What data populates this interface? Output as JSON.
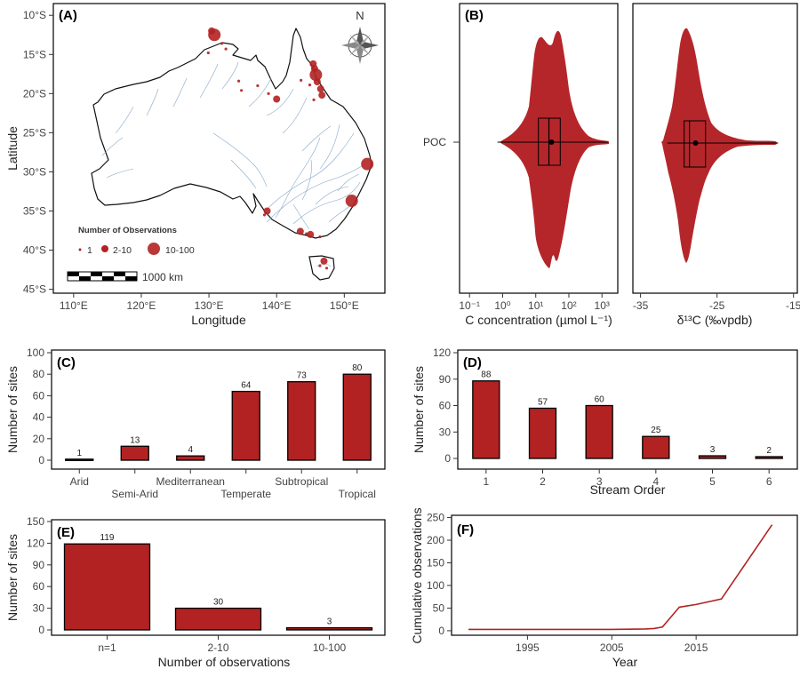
{
  "colors": {
    "accent": "#b22222",
    "violin": "#b5262a",
    "land": "#ffffff",
    "river": "#7a9ec2"
  },
  "chart_data": [
    {
      "type": "scatter",
      "panel": "(A)",
      "xlabel": "Longitude",
      "ylabel": "Latitude",
      "xticks": [
        "110°E",
        "120°E",
        "130°E",
        "140°E",
        "150°E"
      ],
      "yticks": [
        "10°S",
        "15°S",
        "20°S",
        "25°S",
        "30°S",
        "35°S",
        "40°S",
        "45°S"
      ],
      "xlim": [
        107,
        156
      ],
      "ylim": [
        -45.5,
        -8.5
      ],
      "north_label": "N",
      "legend": {
        "title": "Number of Observations",
        "items": [
          "1",
          "2-10",
          "10-100"
        ]
      },
      "scalebar_label": "1000 km",
      "points": [
        {
          "lon": 130.8,
          "lat": -12.5,
          "size": "10-100"
        },
        {
          "lon": 130.4,
          "lat": -12.0,
          "size": "2-10"
        },
        {
          "lon": 131.9,
          "lat": -13.6,
          "size": "1"
        },
        {
          "lon": 132.5,
          "lat": -14.3,
          "size": "1"
        },
        {
          "lon": 129.9,
          "lat": -14.8,
          "size": "1"
        },
        {
          "lon": 134.4,
          "lat": -18.4,
          "size": "1"
        },
        {
          "lon": 134.8,
          "lat": -19.6,
          "size": "1"
        },
        {
          "lon": 137.2,
          "lat": -19.0,
          "size": "1"
        },
        {
          "lon": 138.8,
          "lat": -20.0,
          "size": "1"
        },
        {
          "lon": 140.0,
          "lat": -20.7,
          "size": "2-10"
        },
        {
          "lon": 143.6,
          "lat": -18.3,
          "size": "1"
        },
        {
          "lon": 144.9,
          "lat": -18.9,
          "size": "1"
        },
        {
          "lon": 145.4,
          "lat": -16.2,
          "size": "2-10"
        },
        {
          "lon": 145.6,
          "lat": -16.8,
          "size": "2-10"
        },
        {
          "lon": 145.8,
          "lat": -17.6,
          "size": "10-100"
        },
        {
          "lon": 146.0,
          "lat": -18.5,
          "size": "2-10"
        },
        {
          "lon": 146.5,
          "lat": -19.4,
          "size": "2-10"
        },
        {
          "lon": 146.7,
          "lat": -20.2,
          "size": "2-10"
        },
        {
          "lon": 145.5,
          "lat": -20.8,
          "size": "1"
        },
        {
          "lon": 153.4,
          "lat": -29.0,
          "size": "10-100"
        },
        {
          "lon": 151.1,
          "lat": -33.7,
          "size": "10-100"
        },
        {
          "lon": 138.6,
          "lat": -35.0,
          "size": "2-10"
        },
        {
          "lon": 138.2,
          "lat": -35.5,
          "size": "1"
        },
        {
          "lon": 143.5,
          "lat": -37.6,
          "size": "2-10"
        },
        {
          "lon": 144.4,
          "lat": -37.9,
          "size": "1"
        },
        {
          "lon": 145.0,
          "lat": -38.0,
          "size": "2-10"
        },
        {
          "lon": 146.4,
          "lat": -38.3,
          "size": "1"
        },
        {
          "lon": 147.0,
          "lat": -41.4,
          "size": "2-10"
        },
        {
          "lon": 147.4,
          "lat": -42.3,
          "size": "1"
        },
        {
          "lon": 146.4,
          "lat": -42.0,
          "size": "1"
        }
      ]
    },
    {
      "type": "violin",
      "panel": "(B)",
      "category": "POC",
      "xlabel": "C concentration (µmol L⁻¹)",
      "xscale": "log",
      "xlim": [
        0.05,
        3000
      ],
      "xticks": [
        "10⁻¹",
        "10⁰",
        "10¹",
        "10²",
        "10³"
      ],
      "summary": {
        "min": 0.7,
        "q1": 12,
        "median": 25,
        "mean": 30,
        "q3": 55,
        "max": 1500
      }
    },
    {
      "type": "violin",
      "panel": "(B)",
      "category": "POC",
      "xlabel": "δ¹³C (‰vpdb)",
      "xlim": [
        -36,
        -14.5
      ],
      "xticks": [
        "-35",
        "-25",
        "-15"
      ],
      "summary": {
        "min": -31.5,
        "q1": -29.3,
        "median": -28.6,
        "mean": -27.8,
        "q3": -26.5,
        "max": -17.2
      }
    },
    {
      "type": "bar",
      "panel": "(C)",
      "categories": [
        "Arid",
        "Semi-Arid",
        "Mediterranean",
        "Temperate",
        "Subtropical",
        "Tropical"
      ],
      "values": [
        1,
        13,
        4,
        64,
        73,
        80
      ],
      "ylabel": "Number of sites",
      "xlabel": "",
      "ylim": [
        0,
        100
      ],
      "yticks": [
        0,
        20,
        40,
        60,
        80,
        100
      ]
    },
    {
      "type": "bar",
      "panel": "(D)",
      "categories": [
        "1",
        "2",
        "3",
        "4",
        "5",
        "6"
      ],
      "values": [
        88,
        57,
        60,
        25,
        3,
        2
      ],
      "ylabel": "Number of sites",
      "xlabel": "Stream Order",
      "ylim": [
        0,
        120
      ],
      "yticks": [
        0,
        30,
        60,
        90,
        120
      ]
    },
    {
      "type": "bar",
      "panel": "(E)",
      "categories": [
        "n=1",
        "2-10",
        "10-100"
      ],
      "values": [
        119,
        30,
        3
      ],
      "ylabel": "Number of sites",
      "xlabel": "Number of observations",
      "ylim": [
        0,
        150
      ],
      "yticks": [
        0,
        30,
        60,
        90,
        120,
        150
      ]
    },
    {
      "type": "line",
      "panel": "(F)",
      "xlabel": "Year",
      "ylabel": "Cumulative observations",
      "xlim": [
        1986,
        2027
      ],
      "ylim": [
        -10,
        255
      ],
      "xticks": [
        1995,
        2005,
        2015
      ],
      "yticks": [
        0,
        50,
        100,
        150,
        200,
        250
      ],
      "x": [
        1988,
        1995,
        2000,
        2005,
        2009,
        2010,
        2011,
        2013,
        2015,
        2018,
        2024
      ],
      "y": [
        3,
        3,
        3,
        3,
        4,
        5,
        8,
        52,
        58,
        70,
        234
      ]
    }
  ]
}
